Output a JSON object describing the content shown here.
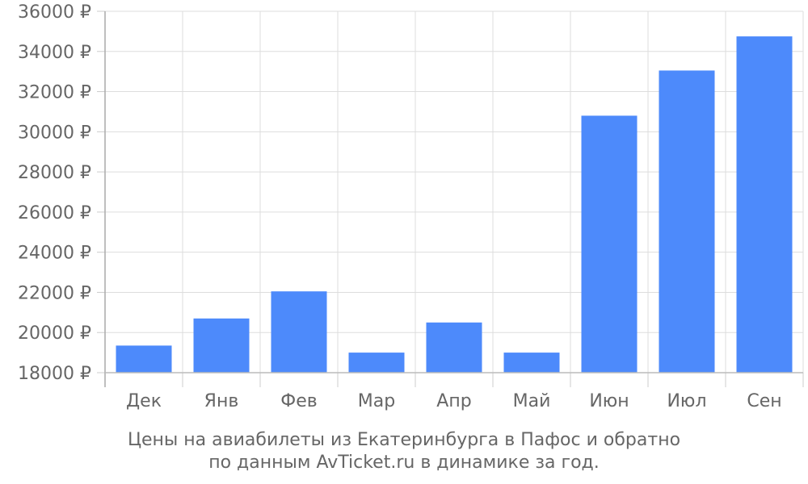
{
  "chart_data": {
    "type": "bar",
    "categories": [
      "Дек",
      "Янв",
      "Фев",
      "Мар",
      "Апр",
      "Май",
      "Июн",
      "Июл",
      "Сен"
    ],
    "values": [
      19350,
      20700,
      22050,
      19000,
      20500,
      19000,
      30800,
      33050,
      34750
    ],
    "ylim": [
      18000,
      36000
    ],
    "yticks": [
      18000,
      20000,
      22000,
      24000,
      26000,
      28000,
      30000,
      32000,
      34000,
      36000
    ],
    "y_tick_suffix": " ₽",
    "grid": true,
    "bar_color": "#4d8afb",
    "caption_line1": "Цены на авиабилеты из Екатеринбурга в Пафос и обратно",
    "caption_line2": "по данным AvTicket.ru в динамике за год."
  }
}
